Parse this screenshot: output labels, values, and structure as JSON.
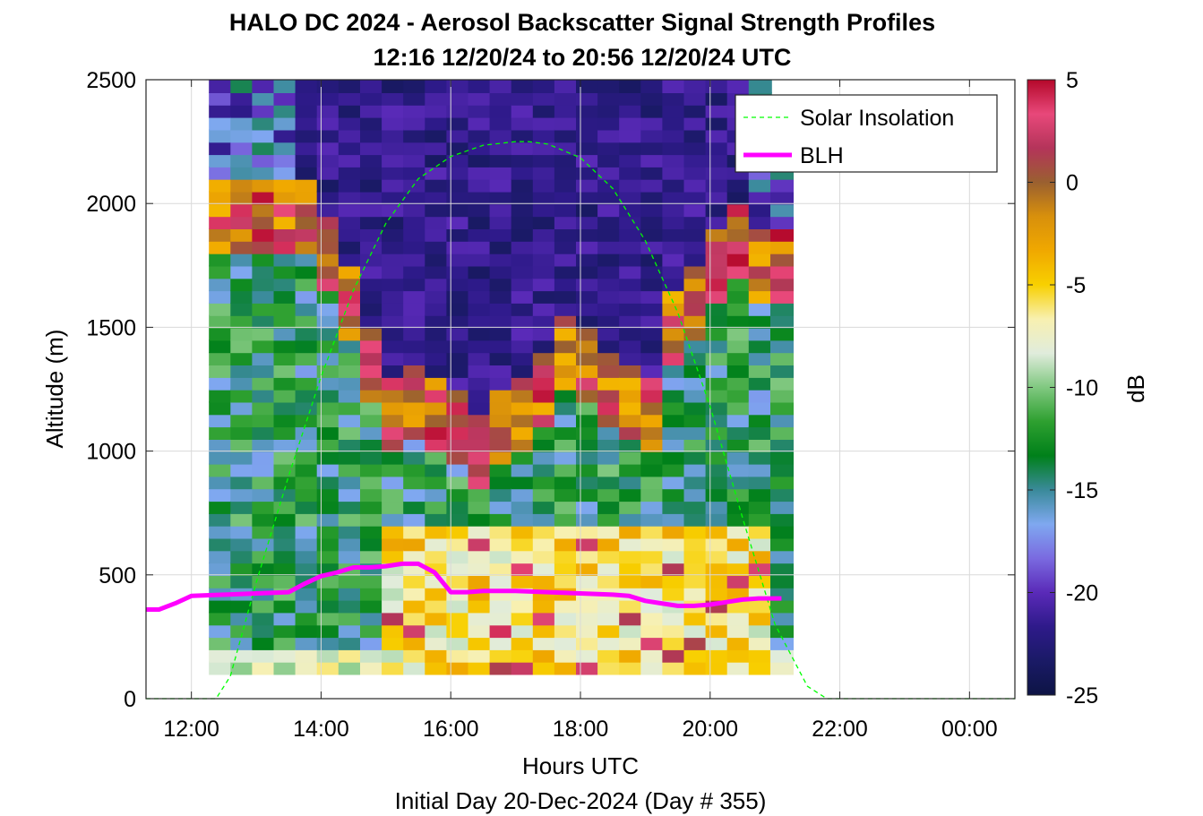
{
  "chart_data": {
    "type": "heatmap",
    "title": "HALO DC 2024 - Aerosol Backscatter Signal Strength Profiles",
    "subtitle": "12:16 12/20/24 to 20:56 12/20/24  UTC",
    "xlabel": "Hours UTC",
    "xlabel2": "Initial Day 20-Dec-2024 (Day # 355)",
    "ylabel": "Altitude (m)",
    "colorbar_label": "dB",
    "xlim_hours": [
      11.3,
      24.7
    ],
    "ylim": [
      0,
      2500
    ],
    "clim": [
      -25,
      5
    ],
    "grid": true,
    "x_tick_labels": [
      "12:00",
      "14:00",
      "16:00",
      "18:00",
      "20:00",
      "22:00",
      "00:00"
    ],
    "x_tick_hours": [
      12,
      14,
      16,
      18,
      20,
      22,
      24
    ],
    "y_ticks": [
      0,
      500,
      1000,
      1500,
      2000,
      2500
    ],
    "colorbar_ticks": [
      5,
      0,
      -5,
      -10,
      -15,
      -20,
      -25
    ],
    "colormap": [
      "#0d1445",
      "#1a1a66",
      "#2e1a8a",
      "#5a2ab8",
      "#7a6ae0",
      "#7fa8f0",
      "#3a8a9a",
      "#00801a",
      "#2ea030",
      "#80c880",
      "#e0ecdc",
      "#f8f0b0",
      "#f8d000",
      "#f0a800",
      "#d8900c",
      "#9a6030",
      "#b4345a",
      "#e8487a",
      "#b4082a"
    ],
    "legend": {
      "position": "top-right",
      "entries": [
        {
          "label": "Solar Insolation",
          "color": "#00ff00",
          "style": "dashed"
        },
        {
          "label": "BLH",
          "color": "#ff00ff",
          "style": "solid"
        }
      ]
    },
    "heatmap": {
      "time_start_hours": 12.27,
      "time_end_hours": 20.93,
      "bin_width_hours": 0.333,
      "altitude_bin_m": 50,
      "altitude_min_m": 100,
      "profile_tops_m": [
        2500,
        2500,
        2500,
        2500,
        2500,
        2500,
        2500,
        2500,
        2500,
        2500,
        2500,
        2500,
        2500,
        2500,
        2500,
        2500,
        2500,
        2500,
        2500,
        2500,
        2500,
        2500,
        2500,
        2500,
        2500,
        2500,
        2150
      ],
      "boundary_layer_tops_m": [
        1900,
        1900,
        1900,
        1900,
        1900,
        1750,
        1550,
        1300,
        1100,
        1150,
        1100,
        1050,
        950,
        1050,
        1100,
        1200,
        1350,
        1300,
        1200,
        1150,
        1100,
        1450,
        1550,
        1700,
        1800,
        1700,
        1700
      ]
    },
    "blh_series": {
      "name": "BLH",
      "x_hours": [
        11.3,
        11.5,
        11.75,
        12.0,
        12.5,
        13.0,
        13.5,
        13.75,
        14.0,
        14.25,
        14.5,
        14.75,
        15.0,
        15.25,
        15.5,
        15.75,
        16.0,
        16.25,
        16.5,
        16.75,
        17.0,
        17.5,
        18.0,
        18.5,
        18.75,
        19.0,
        19.25,
        19.5,
        19.75,
        20.0,
        20.25,
        20.5,
        20.75,
        21.0,
        21.1
      ],
      "y_m": [
        360,
        360,
        385,
        415,
        420,
        425,
        430,
        465,
        495,
        510,
        530,
        530,
        535,
        545,
        545,
        510,
        430,
        430,
        435,
        435,
        435,
        430,
        425,
        420,
        415,
        395,
        385,
        375,
        375,
        380,
        390,
        400,
        405,
        405,
        405
      ]
    },
    "solar_insolation_series": {
      "name": "Solar Insolation",
      "x_hours": [
        11.3,
        12.38,
        12.6,
        13.0,
        13.5,
        14.0,
        14.5,
        15.0,
        15.5,
        16.0,
        16.5,
        17.0,
        17.2,
        17.5,
        18.0,
        18.5,
        19.0,
        19.5,
        20.0,
        20.5,
        21.0,
        21.5,
        21.8,
        24.7
      ],
      "y_m": [
        0,
        0,
        90,
        470,
        900,
        1300,
        1650,
        1920,
        2100,
        2190,
        2235,
        2250,
        2250,
        2240,
        2185,
        2060,
        1850,
        1560,
        1180,
        730,
        300,
        50,
        0,
        0
      ]
    }
  }
}
